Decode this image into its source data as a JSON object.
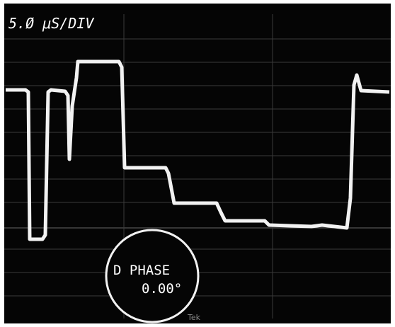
{
  "screen": {
    "timebase": "5.Ø μS/DIV",
    "readout": {
      "label": "D PHASE",
      "value": "0.00°"
    },
    "brand": "Tek"
  }
}
